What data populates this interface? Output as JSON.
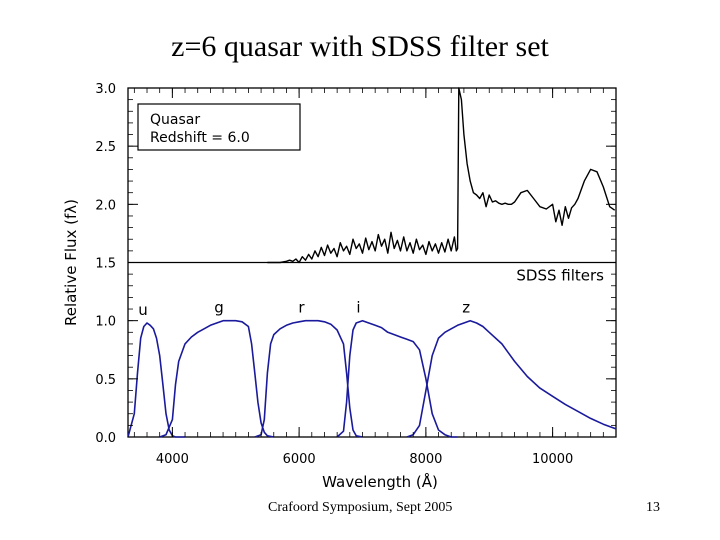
{
  "slide": {
    "title": "z=6 quasar with SDSS filter set",
    "footer": "Crafoord Symposium, Sept 2005",
    "page_number": "13"
  },
  "chart_data": {
    "type": "line",
    "xlabel": "Wavelength (Å)",
    "ylabel": "Relative Flux (fλ)",
    "xlim": [
      3300,
      11000
    ],
    "ylim": [
      0.0,
      3.0
    ],
    "xticks": [
      4000,
      6000,
      8000,
      10000
    ],
    "xtick_labels": [
      "4000",
      "6000",
      "8000",
      "10000"
    ],
    "yticks": [
      0.0,
      0.5,
      1.0,
      1.5,
      2.0,
      2.5,
      3.0
    ],
    "ytick_labels": [
      "0.0",
      "0.5",
      "1.0",
      "1.5",
      "2.0",
      "2.5",
      "3.0"
    ],
    "divider_y": 1.5,
    "annotation": "Quasar\nRedshift = 6.0",
    "sdss_label": "SDSS filters",
    "colors": {
      "quasar": "#000000",
      "filters": "#1a1a9c",
      "axes": "#000000"
    },
    "series": [
      {
        "name": "Quasar",
        "x": [
          5500,
          5700,
          5800,
          5850,
          5900,
          5950,
          6000,
          6050,
          6100,
          6150,
          6200,
          6250,
          6300,
          6350,
          6400,
          6450,
          6500,
          6550,
          6600,
          6650,
          6700,
          6750,
          6800,
          6850,
          6900,
          6950,
          7000,
          7050,
          7100,
          7150,
          7200,
          7250,
          7300,
          7350,
          7400,
          7450,
          7500,
          7550,
          7600,
          7650,
          7700,
          7750,
          7800,
          7850,
          7900,
          7950,
          8000,
          8050,
          8100,
          8150,
          8200,
          8250,
          8300,
          8350,
          8400,
          8450,
          8480,
          8500,
          8520,
          8560,
          8600,
          8650,
          8700,
          8750,
          8800,
          8850,
          8900,
          8950,
          9000,
          9050,
          9100,
          9150,
          9200,
          9250,
          9300,
          9350,
          9400,
          9500,
          9600,
          9700,
          9800,
          9900,
          10000,
          10050,
          10100,
          10150,
          10200,
          10250,
          10300,
          10350,
          10400,
          10500,
          10600,
          10700,
          10800,
          10900,
          10980
        ],
        "values": [
          1.5,
          1.5,
          1.51,
          1.52,
          1.51,
          1.53,
          1.5,
          1.55,
          1.52,
          1.57,
          1.53,
          1.6,
          1.55,
          1.63,
          1.56,
          1.65,
          1.58,
          1.62,
          1.55,
          1.67,
          1.6,
          1.64,
          1.57,
          1.7,
          1.62,
          1.66,
          1.58,
          1.71,
          1.61,
          1.68,
          1.6,
          1.74,
          1.64,
          1.7,
          1.58,
          1.76,
          1.62,
          1.69,
          1.6,
          1.72,
          1.6,
          1.67,
          1.58,
          1.7,
          1.61,
          1.65,
          1.57,
          1.68,
          1.6,
          1.66,
          1.58,
          1.67,
          1.59,
          1.7,
          1.6,
          1.72,
          1.6,
          1.62,
          3.0,
          2.9,
          2.6,
          2.35,
          2.2,
          2.1,
          2.08,
          2.05,
          2.1,
          1.98,
          2.08,
          2.02,
          2.03,
          2.01,
          2.0,
          2.01,
          2.0,
          2.0,
          2.02,
          2.1,
          2.12,
          2.05,
          1.98,
          1.96,
          2.0,
          1.85,
          1.95,
          1.82,
          1.98,
          1.88,
          1.97,
          2.0,
          2.05,
          2.2,
          2.3,
          2.28,
          2.15,
          1.98,
          1.95
        ]
      },
      {
        "name": "u",
        "x": [
          3300,
          3400,
          3450,
          3500,
          3550,
          3600,
          3650,
          3700,
          3750,
          3800,
          3850,
          3900,
          3950,
          4000,
          4050,
          4100,
          4200
        ],
        "values": [
          0.0,
          0.2,
          0.55,
          0.85,
          0.95,
          0.98,
          0.96,
          0.93,
          0.85,
          0.7,
          0.45,
          0.2,
          0.06,
          0.01,
          0.0,
          0.0,
          0.0
        ]
      },
      {
        "name": "g",
        "x": [
          3800,
          3900,
          4000,
          4050,
          4100,
          4200,
          4300,
          4400,
          4500,
          4600,
          4700,
          4800,
          4900,
          5000,
          5100,
          5200,
          5250,
          5300,
          5350,
          5400,
          5450,
          5500,
          5600
        ],
        "values": [
          0.0,
          0.02,
          0.15,
          0.45,
          0.65,
          0.8,
          0.86,
          0.9,
          0.93,
          0.96,
          0.98,
          1.0,
          1.0,
          1.0,
          0.99,
          0.95,
          0.8,
          0.55,
          0.3,
          0.12,
          0.04,
          0.01,
          0.0
        ]
      },
      {
        "name": "r",
        "x": [
          5300,
          5400,
          5450,
          5500,
          5550,
          5600,
          5700,
          5800,
          5900,
          6000,
          6100,
          6200,
          6300,
          6400,
          6500,
          6600,
          6700,
          6750,
          6800,
          6850,
          6900,
          7000
        ],
        "values": [
          0.0,
          0.02,
          0.15,
          0.55,
          0.8,
          0.88,
          0.93,
          0.96,
          0.98,
          0.99,
          1.0,
          1.0,
          1.0,
          0.99,
          0.97,
          0.92,
          0.8,
          0.55,
          0.25,
          0.06,
          0.01,
          0.0
        ]
      },
      {
        "name": "i",
        "x": [
          6600,
          6700,
          6750,
          6800,
          6850,
          6900,
          7000,
          7100,
          7200,
          7300,
          7400,
          7500,
          7600,
          7700,
          7800,
          7900,
          8000,
          8100,
          8200,
          8300,
          8400,
          8500
        ],
        "values": [
          0.0,
          0.05,
          0.3,
          0.7,
          0.92,
          0.98,
          1.0,
          0.98,
          0.96,
          0.94,
          0.9,
          0.88,
          0.86,
          0.84,
          0.82,
          0.75,
          0.5,
          0.2,
          0.06,
          0.02,
          0.0,
          0.0
        ]
      },
      {
        "name": "z",
        "x": [
          7700,
          7800,
          7900,
          8000,
          8100,
          8200,
          8300,
          8400,
          8500,
          8600,
          8700,
          8800,
          8900,
          9000,
          9200,
          9400,
          9600,
          9800,
          10000,
          10200,
          10400,
          10600,
          10800,
          11000
        ],
        "values": [
          0.0,
          0.02,
          0.1,
          0.4,
          0.7,
          0.85,
          0.9,
          0.93,
          0.96,
          0.98,
          1.0,
          0.98,
          0.95,
          0.9,
          0.8,
          0.65,
          0.52,
          0.42,
          0.35,
          0.28,
          0.22,
          0.16,
          0.11,
          0.07
        ]
      }
    ]
  }
}
